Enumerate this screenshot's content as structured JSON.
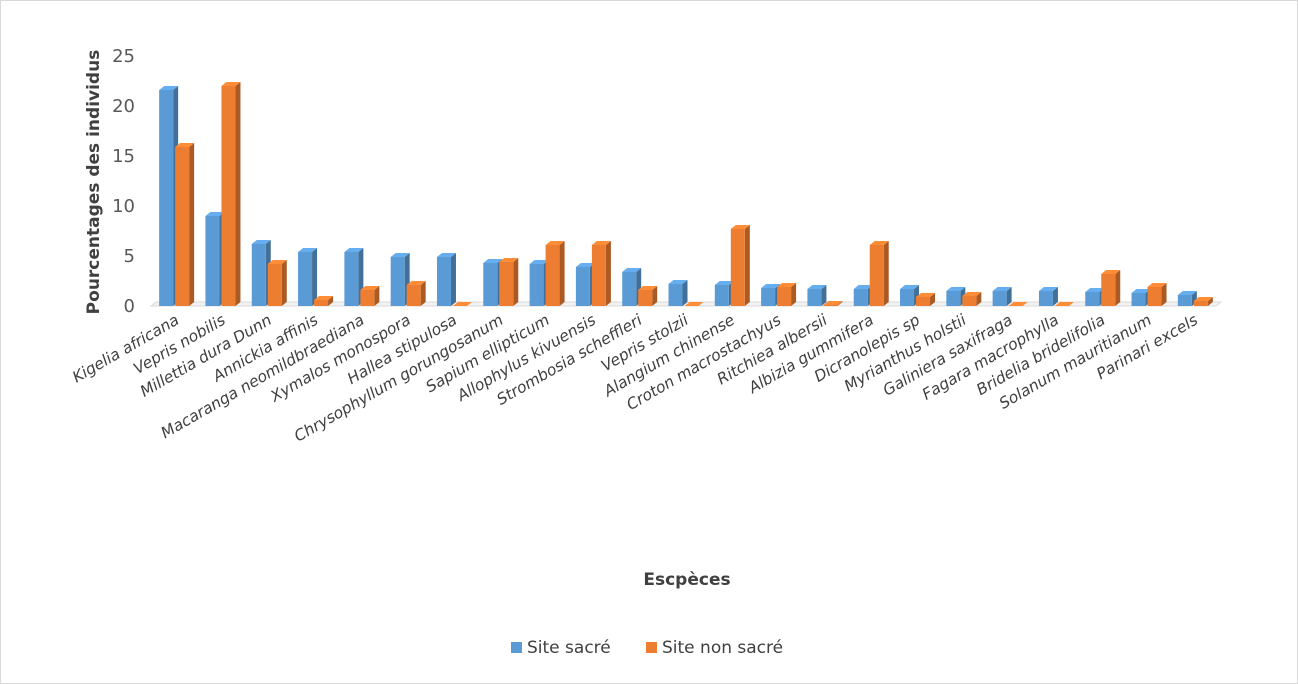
{
  "chart_data": {
    "type": "bar",
    "style": "3d-clustered-column",
    "title": "",
    "xlabel": "Escpèces",
    "ylabel": "Pourcentages des individus",
    "ylim": [
      0,
      25
    ],
    "yticks": [
      0,
      5,
      10,
      15,
      20,
      25
    ],
    "grid": false,
    "legend_position": "bottom",
    "categories": [
      "Kigelia africana",
      "Vepris nobilis",
      "Millettia dura Dunn",
      "Annickia affinis",
      "Macaranga neomildbraediana",
      "Xymalos monospora",
      "Hallea stipulosa",
      "Chrysophyllum gorungosanum",
      "Sapium ellipticum",
      "Allophylus kivuensis",
      "Strombosia scheffleri",
      "Vepris stolzii",
      "Alangium chinense",
      "Croton macrostachyus",
      "Ritchiea albersii",
      "Albizia gummifera",
      "Dicranolepis sp",
      "Myrianthus holstii",
      "Galiniera saxifraga",
      "Fagara macrophylla",
      "Bridelia bridelifolia",
      "Solanum mauritianum",
      "Parinari excels"
    ],
    "series": [
      {
        "name": "Site sacré",
        "color": "#5b9bd5",
        "values": [
          21.6,
          9.0,
          6.2,
          5.4,
          5.4,
          4.9,
          4.9,
          4.3,
          4.2,
          3.9,
          3.4,
          2.2,
          2.1,
          1.8,
          1.7,
          1.7,
          1.7,
          1.5,
          1.5,
          1.5,
          1.4,
          1.3,
          1.1
        ]
      },
      {
        "name": "Site non sacré",
        "color": "#ed7d31",
        "values": [
          15.9,
          22.0,
          4.2,
          0.6,
          1.6,
          2.1,
          0.0,
          4.4,
          6.1,
          6.1,
          1.6,
          0.0,
          7.7,
          1.9,
          0.1,
          6.1,
          0.9,
          1.0,
          0.0,
          0.0,
          3.2,
          1.9,
          0.5
        ]
      }
    ]
  }
}
